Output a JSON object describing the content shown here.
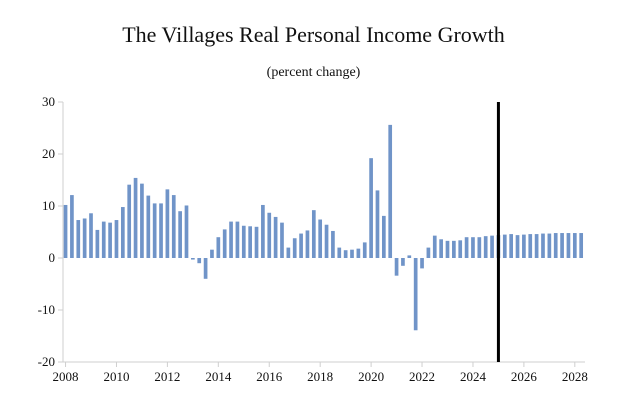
{
  "chart_data": {
    "type": "bar",
    "title": "The Villages Real Personal Income Growth",
    "subtitle": "(percent change)",
    "xlabel": "",
    "ylabel": "",
    "ylim": [
      -20,
      30
    ],
    "y_ticks": [
      30,
      20,
      10,
      0,
      -10,
      -20
    ],
    "x_range": [
      2007.9,
      2028.4
    ],
    "x_ticks": [
      2008,
      2010,
      2012,
      2014,
      2016,
      2018,
      2020,
      2022,
      2024,
      2026,
      2028
    ],
    "x_tick_labels": [
      "2008",
      "2010",
      "2012",
      "2014",
      "2016",
      "2018",
      "2020",
      "2022",
      "2024",
      "2026",
      "2028"
    ],
    "grid": false,
    "bar_color": "#7094c8",
    "forecast_line_color": "#000000",
    "forecast_start": 2025.0,
    "series": [
      {
        "name": "Real Personal Income Growth",
        "x": [
          2008.0,
          2008.25,
          2008.5,
          2008.75,
          2009.0,
          2009.25,
          2009.5,
          2009.75,
          2010.0,
          2010.25,
          2010.5,
          2010.75,
          2011.0,
          2011.25,
          2011.5,
          2011.75,
          2012.0,
          2012.25,
          2012.5,
          2012.75,
          2013.0,
          2013.25,
          2013.5,
          2013.75,
          2014.0,
          2014.25,
          2014.5,
          2014.75,
          2015.0,
          2015.25,
          2015.5,
          2015.75,
          2016.0,
          2016.25,
          2016.5,
          2016.75,
          2017.0,
          2017.25,
          2017.5,
          2017.75,
          2018.0,
          2018.25,
          2018.5,
          2018.75,
          2019.0,
          2019.25,
          2019.5,
          2019.75,
          2020.0,
          2020.25,
          2020.5,
          2020.75,
          2021.0,
          2021.25,
          2021.5,
          2021.75,
          2022.0,
          2022.25,
          2022.5,
          2022.75,
          2023.0,
          2023.25,
          2023.5,
          2023.75,
          2024.0,
          2024.25,
          2024.5,
          2024.75,
          2025.0,
          2025.25,
          2025.5,
          2025.75,
          2026.0,
          2026.25,
          2026.5,
          2026.75,
          2027.0,
          2027.25,
          2027.5,
          2027.75,
          2028.0,
          2028.25
        ],
        "values": [
          10.2,
          12.1,
          7.3,
          7.6,
          8.6,
          5.4,
          7.0,
          6.8,
          7.3,
          9.8,
          14.1,
          15.4,
          14.3,
          12.0,
          10.5,
          10.5,
          13.2,
          12.1,
          9.0,
          10.1,
          -0.3,
          -1.0,
          -4.0,
          1.6,
          4.0,
          5.5,
          7.0,
          7.0,
          6.2,
          6.1,
          6.0,
          10.2,
          8.7,
          7.9,
          6.8,
          2.0,
          3.8,
          4.7,
          5.3,
          9.2,
          7.4,
          6.4,
          5.2,
          2.0,
          1.5,
          1.6,
          1.8,
          3.0,
          19.2,
          13.0,
          8.1,
          25.6,
          -3.4,
          -1.5,
          0.5,
          -13.9,
          -2.0,
          2.0,
          4.3,
          3.6,
          3.3,
          3.3,
          3.4,
          4.0,
          4.0,
          4.0,
          4.2,
          4.3,
          4.4,
          4.5,
          4.6,
          4.4,
          4.5,
          4.6,
          4.6,
          4.7,
          4.7,
          4.8,
          4.8,
          4.8,
          4.8,
          4.8
        ]
      }
    ]
  }
}
